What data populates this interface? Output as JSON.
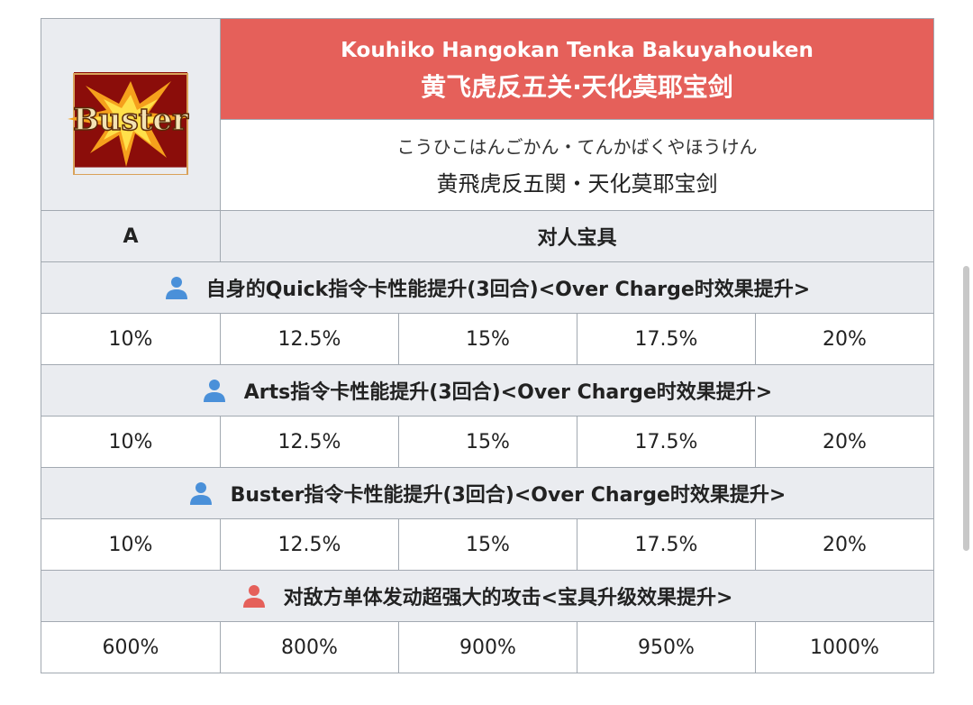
{
  "header": {
    "romaji": "Kouhiko Hangokan Tenka Bakuyahouken",
    "chinese": "黄飞虎反五关·天化莫耶宝剑",
    "kana": "こうひこはんごかん・てんかばくやほうけん",
    "japanese": "黄飛虎反五関・天化莫耶宝剑",
    "card_icon": "buster-card-icon",
    "card_text": "Buster"
  },
  "rank": "A",
  "type": "对人宝具",
  "colors": {
    "header_red": "#e5605a",
    "self_icon": "#4a90d9",
    "enemy_icon": "#e5605a",
    "row_gray": "#eaecf0"
  },
  "effects": [
    {
      "target": "self",
      "label": "自身的Quick指令卡性能提升(3回合)<Over Charge时效果提升>",
      "values": [
        "10%",
        "12.5%",
        "15%",
        "17.5%",
        "20%"
      ]
    },
    {
      "target": "self",
      "label": "Arts指令卡性能提升(3回合)<Over Charge时效果提升>",
      "values": [
        "10%",
        "12.5%",
        "15%",
        "17.5%",
        "20%"
      ]
    },
    {
      "target": "self",
      "label": "Buster指令卡性能提升(3回合)<Over Charge时效果提升>",
      "values": [
        "10%",
        "12.5%",
        "15%",
        "17.5%",
        "20%"
      ]
    },
    {
      "target": "enemy",
      "label": "对敌方单体发动超强大的攻击<宝具升级效果提升>",
      "values": [
        "600%",
        "800%",
        "900%",
        "950%",
        "1000%"
      ]
    }
  ]
}
